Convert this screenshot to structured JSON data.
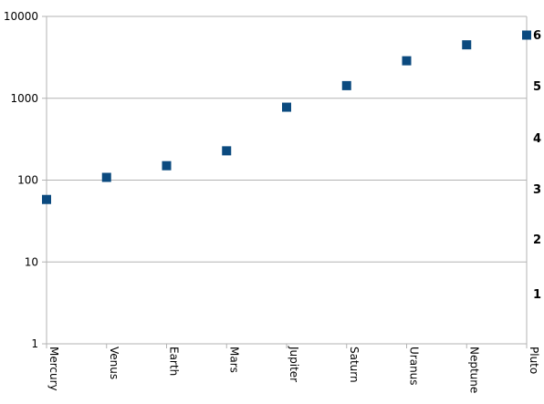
{
  "chart_data": {
    "type": "scatter",
    "title": "",
    "xlabel": "",
    "ylabel": "",
    "y_scale": "log",
    "ylim": [
      1,
      10000
    ],
    "y_ticks": [
      "1",
      "10",
      "100",
      "1000",
      "10000"
    ],
    "categories": [
      "Mercury",
      "Venus",
      "Earth",
      "Mars",
      "Jupiter",
      "Saturn",
      "Uranus",
      "Neptune",
      "Pluto"
    ],
    "series": [
      {
        "values": [
          58,
          108,
          150,
          228,
          778,
          1427,
          2871,
          4497,
          5913
        ]
      }
    ],
    "secondary_axis_ticks": [
      "1",
      "2",
      "3",
      "4",
      "5",
      "6"
    ],
    "grid": true,
    "legend": "none",
    "marker_color": "#0b4a7f"
  }
}
